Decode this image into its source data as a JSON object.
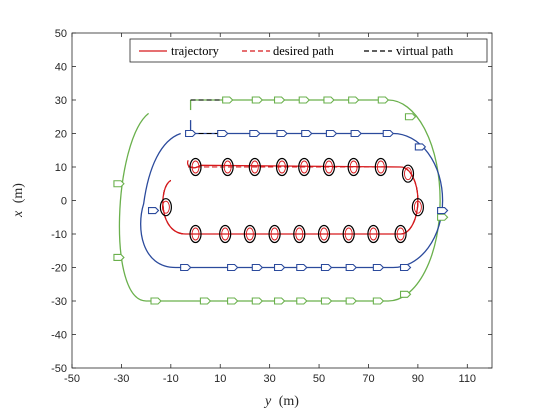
{
  "chart_data": {
    "type": "line",
    "title": "",
    "xlabel": {
      "symbol": "y",
      "unit": "(m)"
    },
    "ylabel": {
      "symbol": "x",
      "unit": "(m)"
    },
    "xlim": [
      -50,
      120
    ],
    "ylim": [
      -50,
      50
    ],
    "xticks": [
      "-50",
      "-30",
      "-10",
      "10",
      "30",
      "50",
      "70",
      "90",
      "110"
    ],
    "xtick_values": [
      -50,
      -30,
      -10,
      10,
      30,
      50,
      70,
      90,
      110
    ],
    "yticks": [
      "50",
      "40",
      "30",
      "20",
      "10",
      "0",
      "-10",
      "-20",
      "-30",
      "-40",
      "-50"
    ],
    "ytick_values": [
      50,
      40,
      30,
      20,
      10,
      0,
      -10,
      -20,
      -30,
      -40,
      -50
    ],
    "grid": false,
    "legend": {
      "placement": "top-right",
      "entries": [
        {
          "label": "trajectory",
          "color": "#d7191c",
          "style": "solid"
        },
        {
          "label": "desired path",
          "color": "#d7191c",
          "style": "dashed"
        },
        {
          "label": "virtual path",
          "color": "#000000",
          "style": "dashed"
        }
      ]
    },
    "series": [
      {
        "id": "green-track",
        "color": "#6ab04c",
        "outline": {
          "straight_y": [
            -2,
            78
          ],
          "center_x": 0,
          "center_y": 78,
          "half_x": 30,
          "radius_y": 21
        },
        "outer_start": [
          -19,
          26
        ]
      },
      {
        "id": "blue-track",
        "color": "#2b4a9c",
        "outline": {
          "straight_y": [
            -2,
            80
          ],
          "center_x": 0,
          "center_y": 80,
          "half_x": 20,
          "radius_y": 20
        },
        "outer_start": [
          -21,
          -1
        ]
      },
      {
        "id": "red-track",
        "color": "#d7191c",
        "outline": {
          "straight_y": [
            -3,
            83
          ],
          "center_x": 0,
          "center_y": 83,
          "half_x": 10,
          "radius_y": 7
        }
      }
    ],
    "markers": {
      "green": [
        [
          -31,
          -17
        ],
        [
          13,
          30
        ],
        [
          25,
          30
        ],
        [
          34,
          30
        ],
        [
          44,
          30
        ],
        [
          54,
          30
        ],
        [
          64,
          30
        ],
        [
          76,
          30
        ],
        [
          87,
          25
        ],
        [
          100,
          -5
        ],
        [
          85,
          -28
        ],
        [
          74,
          -30
        ],
        [
          63,
          -30
        ],
        [
          53,
          -30
        ],
        [
          43,
          -30
        ],
        [
          34,
          -30
        ],
        [
          25,
          -30
        ],
        [
          15,
          -30
        ],
        [
          4,
          -30
        ],
        [
          -16,
          -30
        ],
        [
          -31,
          5
        ]
      ],
      "blue": [
        [
          -2,
          20
        ],
        [
          11,
          20
        ],
        [
          24,
          20
        ],
        [
          35,
          20
        ],
        [
          45,
          20
        ],
        [
          55,
          20
        ],
        [
          65,
          20
        ],
        [
          78,
          20
        ],
        [
          91,
          16
        ],
        [
          100,
          -3
        ],
        [
          85,
          -20
        ],
        [
          74,
          -20
        ],
        [
          63,
          -20
        ],
        [
          53,
          -20
        ],
        [
          43,
          -20
        ],
        [
          34,
          -20
        ],
        [
          25,
          -20
        ],
        [
          15,
          -20
        ],
        [
          -4,
          -20
        ],
        [
          -17,
          -3
        ]
      ],
      "black": [
        [
          0,
          10
        ],
        [
          13,
          10
        ],
        [
          24,
          10
        ],
        [
          35,
          10
        ],
        [
          44,
          10
        ],
        [
          54,
          10
        ],
        [
          64,
          10
        ],
        [
          75,
          10
        ],
        [
          86,
          8
        ],
        [
          90,
          -2
        ],
        [
          83,
          -10
        ],
        [
          72,
          -10
        ],
        [
          62,
          -10
        ],
        [
          52,
          -10
        ],
        [
          42,
          -10
        ],
        [
          32,
          -10
        ],
        [
          22,
          -10
        ],
        [
          12,
          -10
        ],
        [
          0,
          -10
        ],
        [
          -12,
          -2
        ]
      ]
    }
  }
}
